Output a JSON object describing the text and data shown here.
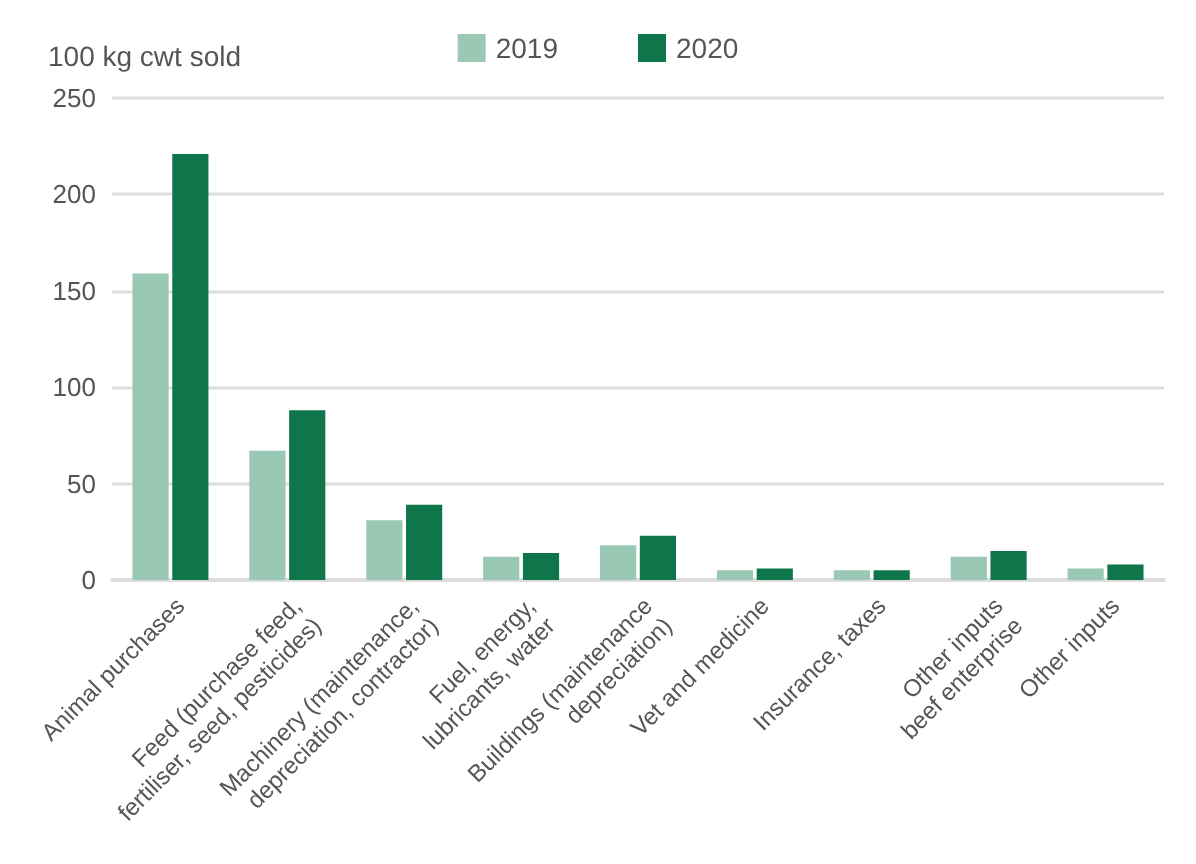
{
  "chart_data": {
    "type": "bar",
    "ylabel": "100 kg cwt sold",
    "categories": [
      "Animal purchases",
      "Feed (purchase feed,\nfertiliser, seed, pesticides)",
      "Machinery (maintenance,\ndepreciation, contractor)",
      "Fuel, energy,\nlubricants, water",
      "Buildings (maintenance\ndepreciation)",
      "Vet and medicine",
      "Insurance, taxes",
      "Other inputs\nbeef enterprise",
      "Other inputs"
    ],
    "series": [
      {
        "name": "2019",
        "color": "#99c8b5",
        "values": [
          159,
          67,
          31,
          12,
          18,
          5,
          5,
          12,
          6
        ]
      },
      {
        "name": "2020",
        "color": "#0f754b",
        "values": [
          221,
          88,
          39,
          14,
          23,
          6,
          5,
          15,
          8
        ]
      }
    ],
    "ylim": [
      0,
      250
    ],
    "yticks": [
      0,
      50,
      100,
      150,
      200,
      250
    ],
    "grid": "y",
    "legend": "top"
  }
}
